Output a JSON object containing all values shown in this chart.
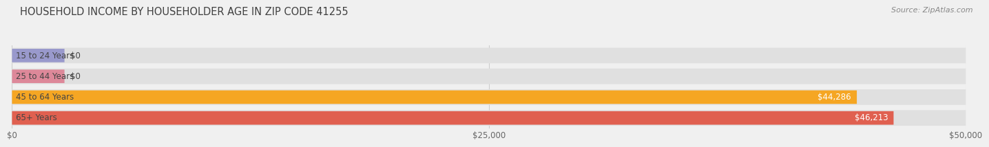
{
  "title": "HOUSEHOLD INCOME BY HOUSEHOLDER AGE IN ZIP CODE 41255",
  "source": "Source: ZipAtlas.com",
  "categories": [
    "15 to 24 Years",
    "25 to 44 Years",
    "45 to 64 Years",
    "65+ Years"
  ],
  "values": [
    0,
    0,
    44286,
    46213
  ],
  "bar_colors": [
    "#9999cc",
    "#dd8899",
    "#f5a623",
    "#e06050"
  ],
  "value_labels": [
    "$0",
    "$0",
    "$44,286",
    "$46,213"
  ],
  "xlim": [
    0,
    50000
  ],
  "xticks": [
    0,
    25000,
    50000
  ],
  "xtick_labels": [
    "$0",
    "$25,000",
    "$50,000"
  ],
  "title_fontsize": 10.5,
  "source_fontsize": 8,
  "label_fontsize": 8.5,
  "value_fontsize": 8.5,
  "tick_fontsize": 8.5,
  "bg_color": "#f0f0f0",
  "bar_bg_color": "#e0e0e0",
  "title_color": "#404040",
  "source_color": "#888888",
  "grid_color": "#cccccc",
  "cat_label_color": "#444444",
  "val_label_dark": "#444444",
  "val_label_light": "#ffffff"
}
